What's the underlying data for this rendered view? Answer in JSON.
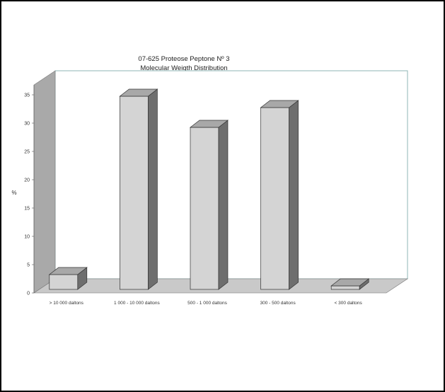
{
  "chart_data": {
    "type": "bar",
    "title": "07-625 Proteose Peptone Nº 3",
    "subtitle": "Molecular Weigth Distribution",
    "ylabel": "%",
    "xlabel": "",
    "ylim": [
      0,
      35
    ],
    "yticks": [
      "0",
      "5",
      "10",
      "15",
      "20",
      "25",
      "30",
      "35"
    ],
    "categories": [
      "> 10 000 daltons",
      "1 000 - 10 000 daltons",
      "500 - 1 000 daltons",
      "300 - 500 daltons",
      "< 300 daltons"
    ],
    "values": [
      3,
      34.5,
      29,
      32.5,
      1
    ],
    "colors": {
      "bar_front": "#d4d4d4",
      "bar_top": "#a8a8a8",
      "bar_side": "#6e6e6e",
      "wall_left": "#a9a9a9",
      "floor": "#c9c9c9",
      "back_wall_border": "#8fb6b6"
    },
    "grid": false,
    "style": "3d"
  }
}
